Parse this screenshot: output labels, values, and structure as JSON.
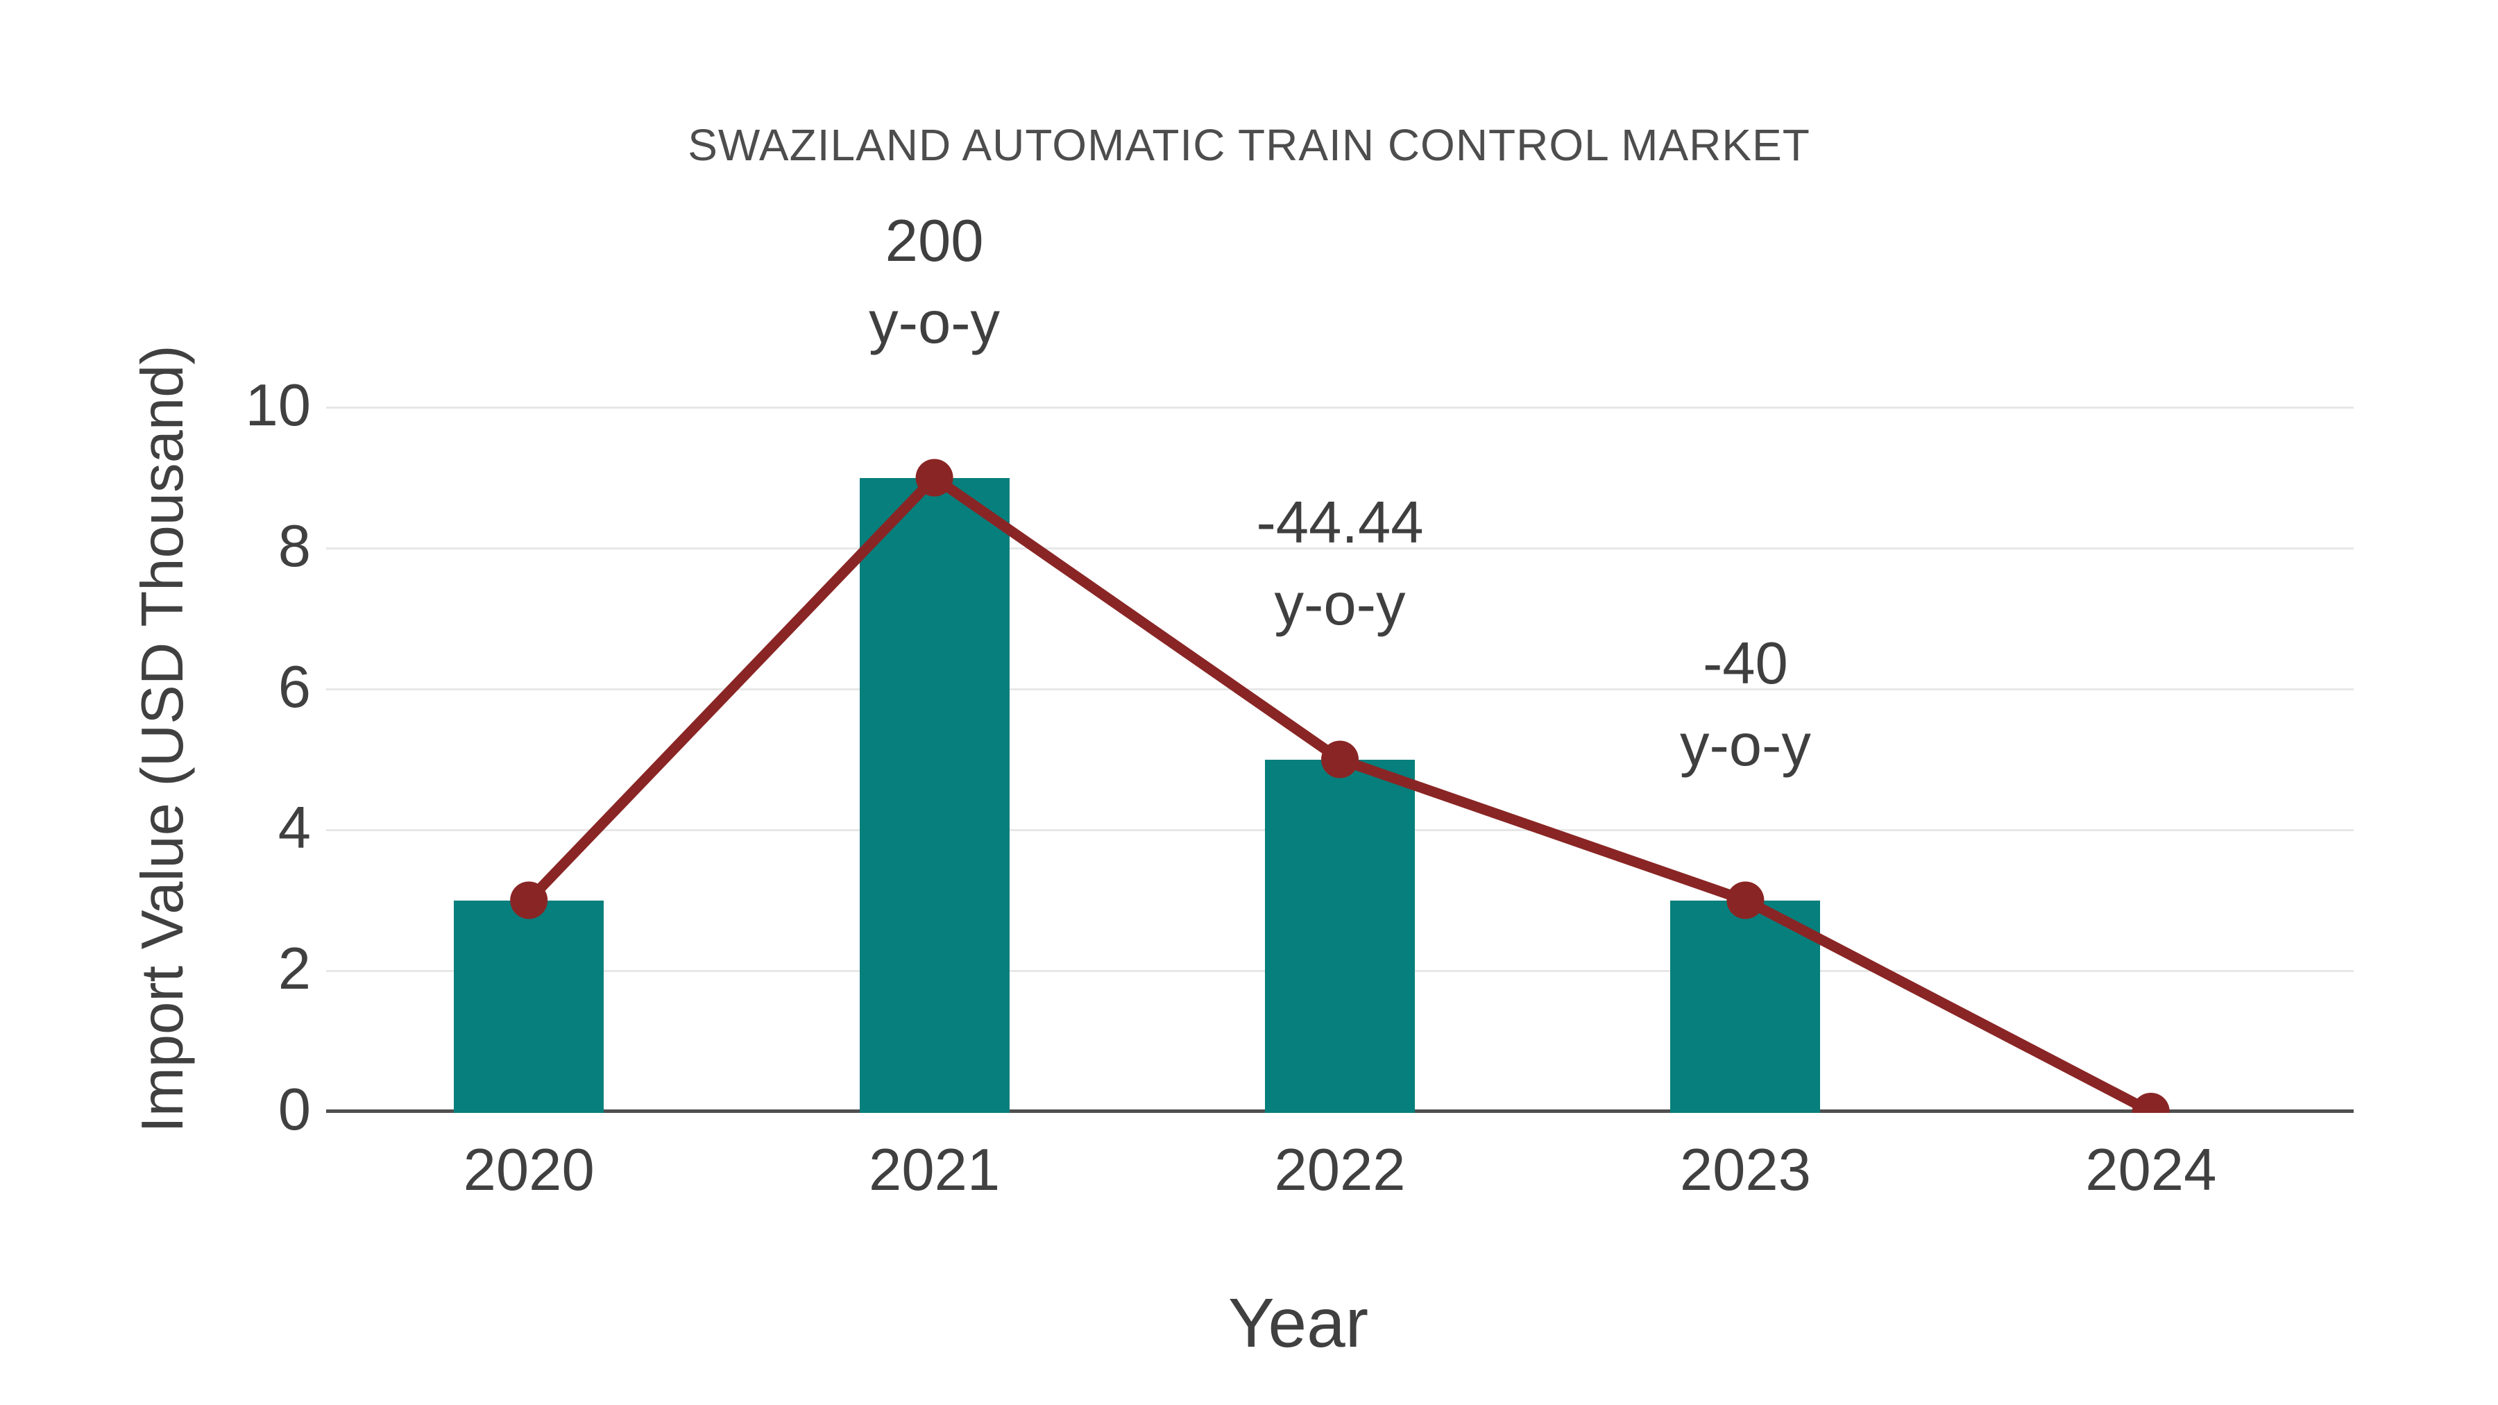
{
  "title": "SWAZILAND AUTOMATIC TRAIN CONTROL MARKET",
  "y_axis": {
    "label": "Import Value (USD Thousand)",
    "ticks": [
      10,
      8,
      6,
      4,
      2,
      0
    ]
  },
  "x_axis": {
    "label": "Year"
  },
  "chart_data": {
    "type": "bar",
    "title": "SWAZILAND AUTOMATIC TRAIN CONTROL MARKET",
    "xlabel": "Year",
    "ylabel": "Import Value (USD Thousand)",
    "categories": [
      "2020",
      "2021",
      "2022",
      "2023",
      "2024"
    ],
    "series": [
      {
        "name": "import-value-bars",
        "type": "bar",
        "values": [
          3,
          9,
          5,
          3,
          0
        ]
      },
      {
        "name": "import-value-line",
        "type": "line",
        "values": [
          3,
          9,
          5,
          3,
          0
        ]
      }
    ],
    "annotations": [
      {
        "category": "2021",
        "value_line": "200",
        "unit_line": "y-o-y"
      },
      {
        "category": "2022",
        "value_line": "-44.44",
        "unit_line": "y-o-y"
      },
      {
        "category": "2023",
        "value_line": "-40",
        "unit_line": "y-o-y"
      }
    ],
    "ylim": [
      0,
      10
    ],
    "grid": "horizontal",
    "legend_position": "none",
    "colors": {
      "bar": "#077f7c",
      "line": "#8a2525",
      "grid": "#e7e7e7",
      "axis": "#4f4f4f",
      "text": "#404040"
    }
  }
}
